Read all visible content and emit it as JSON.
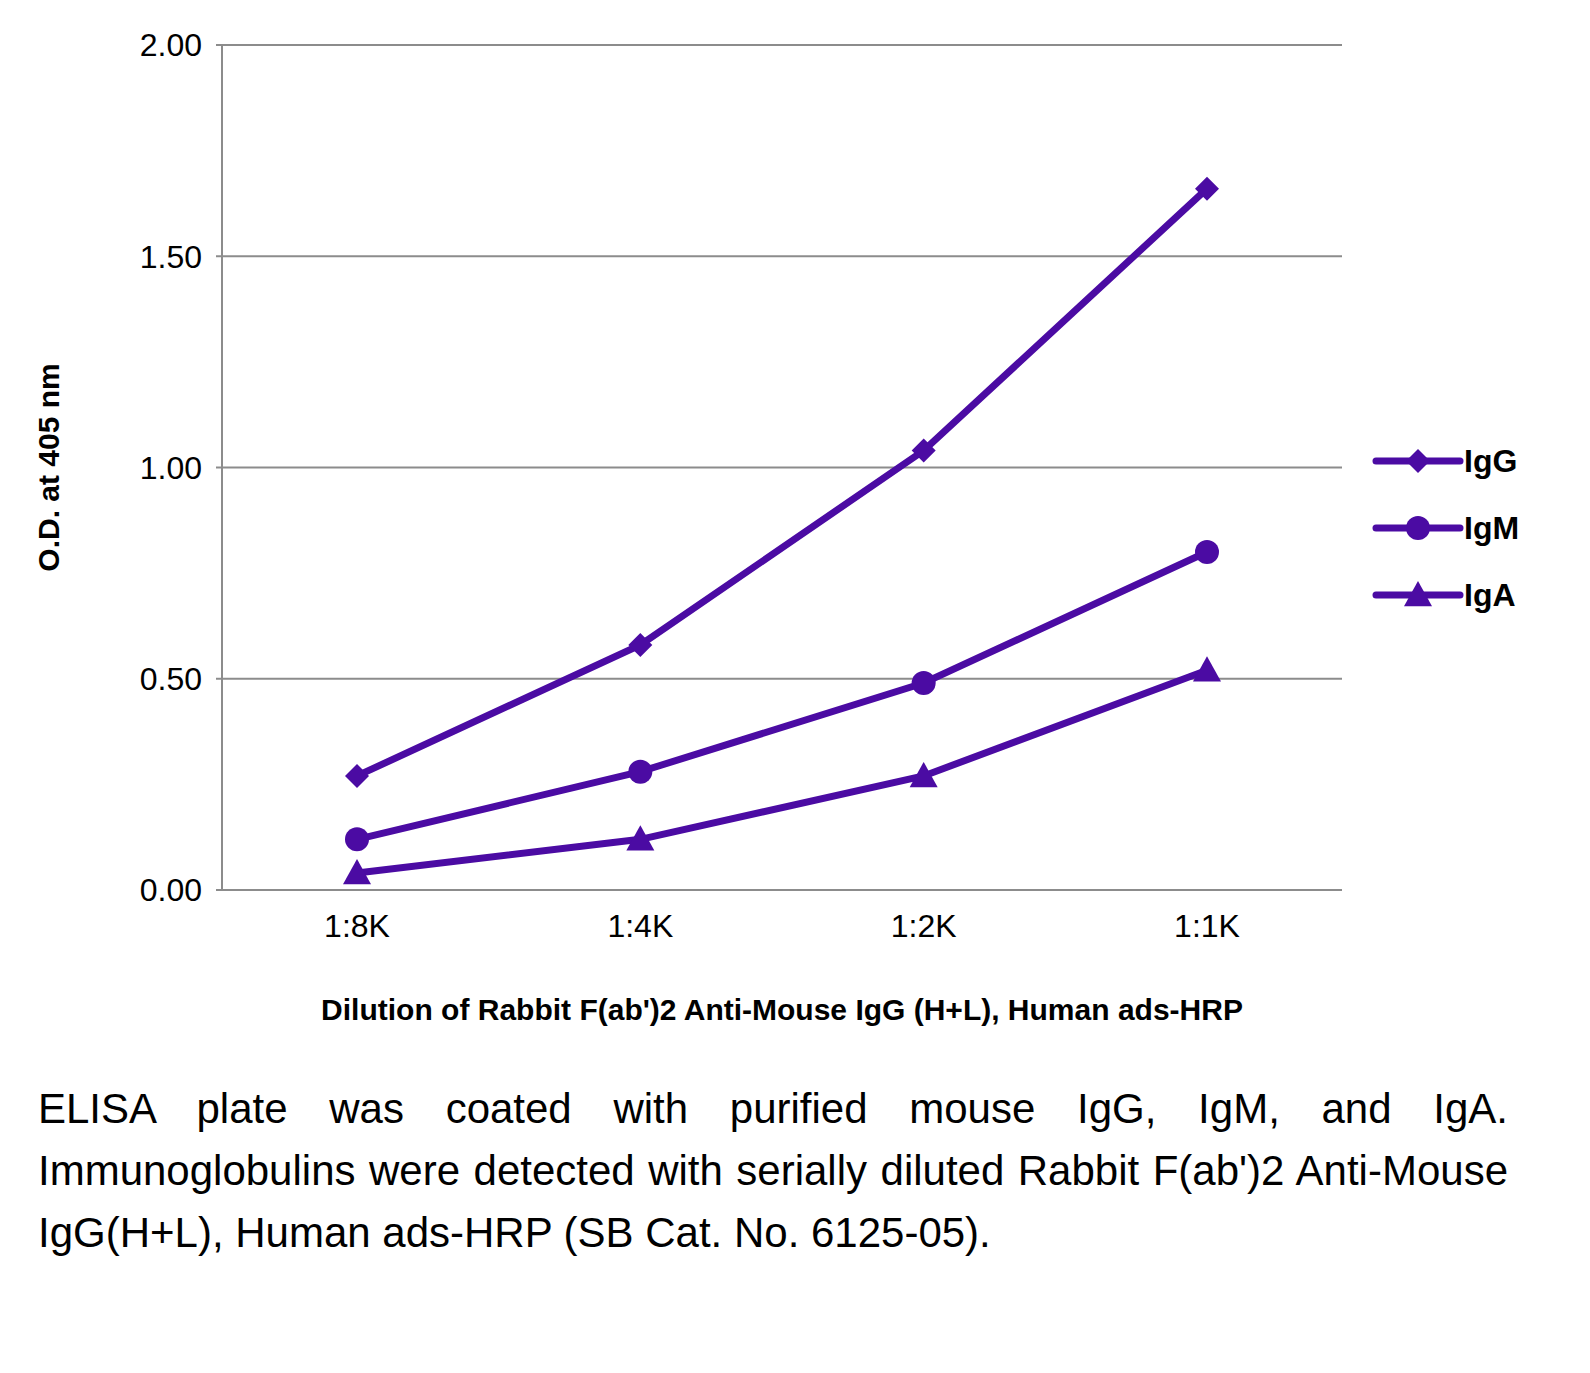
{
  "chart_data": {
    "type": "line",
    "x_label": "Dilution of Rabbit F(ab')2 Anti-Mouse IgG (H+L), Human ads-HRP",
    "y_label": "O.D. at 405 nm",
    "caption": "ELISA plate was coated with purified mouse IgG, IgM, and IgA. Immunoglobulins were detected with serially diluted Rabbit F(ab')2 Anti-Mouse IgG(H+L), Human ads-HRP (SB Cat. No. 6125-05).",
    "categories": [
      "1:8K",
      "1:4K",
      "1:2K",
      "1:1K"
    ],
    "series": [
      {
        "name": "IgG",
        "color": "#4b0ba3",
        "marker": "diamond",
        "values": [
          0.27,
          0.58,
          1.04,
          1.66
        ]
      },
      {
        "name": "IgM",
        "color": "#4b0ba3",
        "marker": "circle",
        "values": [
          0.12,
          0.28,
          0.49,
          0.8
        ]
      },
      {
        "name": "IgA",
        "color": "#4b0ba3",
        "marker": "triangle",
        "values": [
          0.04,
          0.12,
          0.27,
          0.52
        ]
      }
    ],
    "ylim": [
      0,
      2
    ],
    "yticks": [
      {
        "value": 0,
        "label": "0.00"
      },
      {
        "value": 0.5,
        "label": "0.50"
      },
      {
        "value": 1,
        "label": "1.00"
      },
      {
        "value": 1.5,
        "label": "1.50"
      },
      {
        "value": 2,
        "label": "2.00"
      }
    ],
    "grid": true,
    "legend": "right"
  }
}
